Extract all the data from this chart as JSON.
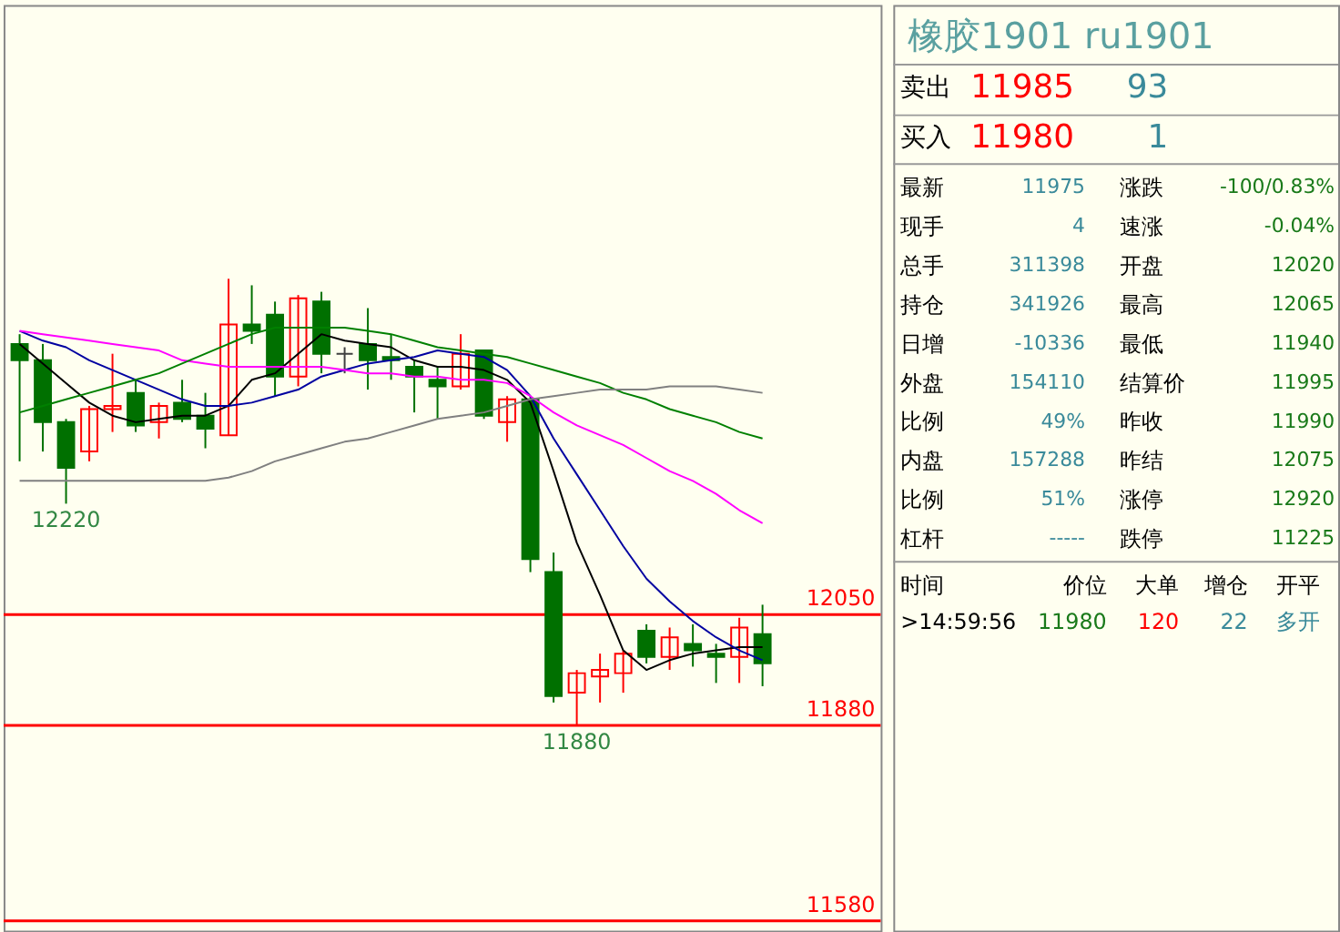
{
  "chart_data": [
    {
      "type": "candlestick",
      "categories": [
        null,
        null,
        null,
        null,
        null,
        null,
        null,
        null,
        null,
        null,
        null,
        null,
        null,
        null,
        null,
        null,
        null,
        null,
        null,
        null,
        null,
        null,
        null,
        null,
        null,
        null,
        null,
        null,
        null,
        null,
        null,
        null,
        null
      ],
      "ohlc": [
        [
          12465,
          12480,
          12285,
          12440
        ],
        [
          12440,
          12465,
          12300,
          12345
        ],
        [
          12345,
          12350,
          12220,
          12275
        ],
        [
          12300,
          12370,
          12285,
          12365
        ],
        [
          12365,
          12450,
          12330,
          12370
        ],
        [
          12390,
          12410,
          12330,
          12340
        ],
        [
          12345,
          12375,
          12320,
          12370
        ],
        [
          12375,
          12410,
          12345,
          12350
        ],
        [
          12355,
          12390,
          12305,
          12335
        ],
        [
          12325,
          12565,
          12325,
          12495
        ],
        [
          12495,
          12555,
          12465,
          12485
        ],
        [
          12510,
          12530,
          12385,
          12415
        ],
        [
          12415,
          12540,
          12400,
          12535
        ],
        [
          12530,
          12545,
          12420,
          12450
        ],
        [
          12450,
          12460,
          12420,
          12450
        ],
        [
          12465,
          12520,
          12395,
          12440
        ],
        [
          12445,
          12480,
          12410,
          12440
        ],
        [
          12430,
          12440,
          12360,
          12415
        ],
        [
          12410,
          12430,
          12350,
          12400
        ],
        [
          12400,
          12480,
          12395,
          12450
        ],
        [
          12455,
          12455,
          12350,
          12355
        ],
        [
          12345,
          12385,
          12315,
          12380
        ],
        [
          12380,
          12385,
          12115,
          12135
        ],
        [
          12115,
          12145,
          11915,
          11925
        ],
        [
          11930,
          11965,
          11880,
          11960
        ],
        [
          11955,
          11990,
          11915,
          11965
        ],
        [
          11960,
          11995,
          11930,
          11990
        ],
        [
          12025,
          12035,
          11975,
          11985
        ],
        [
          11985,
          12030,
          11965,
          12015
        ],
        [
          12005,
          12035,
          11970,
          11995
        ],
        [
          11990,
          12005,
          11945,
          11985
        ],
        [
          11985,
          12045,
          11945,
          12030
        ],
        [
          12020,
          12065,
          11940,
          11975
        ]
      ],
      "colors": [
        "#007000",
        "#007000",
        "#007000",
        "#ff0000",
        "#ff0000",
        "#007000",
        "#ff0000",
        "#007000",
        "#007000",
        "#ff0000",
        "#007000",
        "#007000",
        "#ff0000",
        "#007000",
        "#404040",
        "#007000",
        "#007000",
        "#007000",
        "#007000",
        "#ff0000",
        "#007000",
        "#ff0000",
        "#007000",
        "#007000",
        "#ff0000",
        "#ff0000",
        "#ff0000",
        "#007000",
        "#ff0000",
        "#007000",
        "#007000",
        "#ff0000",
        "#007000"
      ],
      "series": [
        {
          "type": "line",
          "color": "#000000",
          "values": [
            12465,
            12435,
            12405,
            12375,
            12355,
            12345,
            12350,
            12355,
            12355,
            12370,
            12410,
            12420,
            12450,
            12480,
            12470,
            12465,
            12460,
            12440,
            12430,
            12430,
            12425,
            12410,
            12375,
            12270,
            12160,
            12080,
            11995,
            11965,
            11980,
            11990,
            11995,
            12000,
            12000
          ]
        },
        {
          "type": "line",
          "color": "#0000a0",
          "values": [
            12485,
            12470,
            12460,
            12440,
            12425,
            12410,
            12395,
            12380,
            12370,
            12370,
            12375,
            12385,
            12395,
            12415,
            12425,
            12435,
            12440,
            12445,
            12455,
            12450,
            12445,
            12425,
            12385,
            12320,
            12265,
            12210,
            12155,
            12105,
            12070,
            12040,
            12015,
            11995,
            11980
          ]
        },
        {
          "type": "line",
          "color": "#ff00ff",
          "values": [
            12485,
            12480,
            12475,
            12470,
            12465,
            12460,
            12455,
            12440,
            12435,
            12430,
            12430,
            12430,
            12430,
            12430,
            12425,
            12420,
            12420,
            12415,
            12415,
            12410,
            12410,
            12405,
            12385,
            12360,
            12340,
            12325,
            12310,
            12290,
            12270,
            12255,
            12235,
            12210,
            12190
          ]
        },
        {
          "type": "line",
          "color": "#008000",
          "values": [
            12360,
            12370,
            12380,
            12390,
            12400,
            12410,
            12420,
            12435,
            12450,
            12465,
            12480,
            12490,
            12490,
            12490,
            12490,
            12485,
            12480,
            12470,
            12460,
            12455,
            12450,
            12445,
            12435,
            12425,
            12415,
            12405,
            12390,
            12380,
            12365,
            12355,
            12345,
            12330,
            12320
          ]
        },
        {
          "type": "line",
          "color": "#808080",
          "values": [
            12255,
            12255,
            12255,
            12255,
            12255,
            12255,
            12255,
            12255,
            12255,
            12260,
            12270,
            12285,
            12295,
            12305,
            12315,
            12320,
            12330,
            12340,
            12350,
            12355,
            12360,
            12370,
            12380,
            12385,
            12390,
            12395,
            12395,
            12395,
            12400,
            12400,
            12400,
            12395,
            12390
          ]
        }
      ],
      "ylim": [
        11565,
        12985
      ],
      "tick_labels": false,
      "ref_lines": [
        {
          "axis": "y",
          "value": 12050,
          "label": "12050",
          "color": "#ff0000"
        },
        {
          "axis": "y",
          "value": 11880,
          "label": "11880",
          "color": "#ff0000"
        },
        {
          "axis": "y",
          "value": 11580,
          "label": "11580",
          "color": "#ff0000"
        }
      ],
      "annotations": [
        {
          "text": "12220",
          "y": 12220
        },
        {
          "text": "11880",
          "y": 11880
        }
      ]
    },
    {
      "type": "other",
      "title": "橡胶1901  ru1901",
      "annotations": [
        "卖出",
        "11985",
        "93",
        "买入",
        "11980",
        "1",
        "最新",
        "11975",
        "涨跌",
        "-100/0.83%",
        "现手",
        "4",
        "速涨",
        "-0.04%",
        "总手",
        "311398",
        "开盘",
        "12020",
        "持仓",
        "341926",
        "最高",
        "12065",
        "日增",
        "-10336",
        "最低",
        "11940",
        "外盘",
        "154110",
        "结算价",
        "11995",
        "比例",
        "49%",
        "昨收",
        "11990",
        "内盘",
        "157288",
        "昨结",
        "12075",
        "比例",
        "51%",
        "涨停",
        "12920",
        "杠杆",
        "-----",
        "跌停",
        "11225",
        "时间",
        "价位",
        "大单",
        "增仓",
        "开平",
        ">14:59:56",
        "11980",
        "120",
        "22",
        "多开"
      ]
    }
  ]
}
